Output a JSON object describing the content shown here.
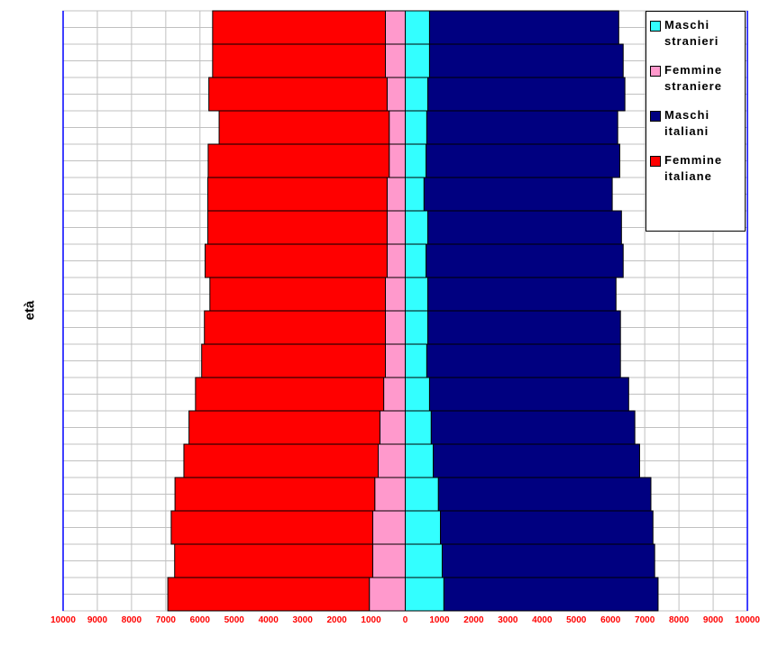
{
  "chart_data": {
    "type": "bar",
    "orientation": "horizontal",
    "stacked": true,
    "y_label": "età",
    "categories": [
      null,
      null,
      null,
      null,
      null,
      null,
      null,
      null,
      null,
      null,
      null,
      null,
      null,
      null,
      null,
      null,
      null,
      null
    ],
    "series": [
      {
        "name": "Maschi stranieri",
        "color": "#33ffff",
        "values": [
          710,
          710,
          660,
          630,
          610,
          550,
          660,
          610,
          660,
          660,
          630,
          710,
          760,
          820,
          970,
          1030,
          1080,
          1130
        ]
      },
      {
        "name": "Femmine straniere",
        "color": "#ff99cc",
        "values": [
          -580,
          -580,
          -530,
          -470,
          -470,
          -530,
          -530,
          -530,
          -580,
          -580,
          -580,
          -630,
          -740,
          -790,
          -890,
          -950,
          -950,
          -1050
        ]
      },
      {
        "name": "Maschi italiani",
        "color": "#000080",
        "values": [
          5530,
          5660,
          5760,
          5580,
          5660,
          5500,
          5660,
          5760,
          5500,
          5630,
          5660,
          5820,
          5950,
          6030,
          6210,
          6210,
          6210,
          6260
        ]
      },
      {
        "name": "Femmine italiane",
        "color": "#ff0000",
        "values": [
          -5050,
          -5050,
          -5210,
          -4970,
          -5290,
          -5240,
          -5240,
          -5320,
          -5130,
          -5290,
          -5370,
          -5500,
          -5580,
          -5680,
          -5840,
          -5890,
          -5790,
          -5890
        ]
      }
    ],
    "xlim": [
      -10000,
      10000
    ],
    "xticks": [
      {
        "value": -10000,
        "label": "10000"
      },
      {
        "value": -9000,
        "label": "9000"
      },
      {
        "value": -8000,
        "label": "8000"
      },
      {
        "value": -7000,
        "label": "7000"
      },
      {
        "value": -6000,
        "label": "6000"
      },
      {
        "value": -5000,
        "label": "5000"
      },
      {
        "value": -4000,
        "label": "4000"
      },
      {
        "value": -3000,
        "label": "3000"
      },
      {
        "value": -2000,
        "label": "2000"
      },
      {
        "value": -1000,
        "label": "1000"
      },
      0,
      1000,
      2000,
      3000,
      4000,
      5000,
      6000,
      7000,
      8000,
      9000,
      10000
    ],
    "grid": true,
    "legend": "upper right"
  }
}
